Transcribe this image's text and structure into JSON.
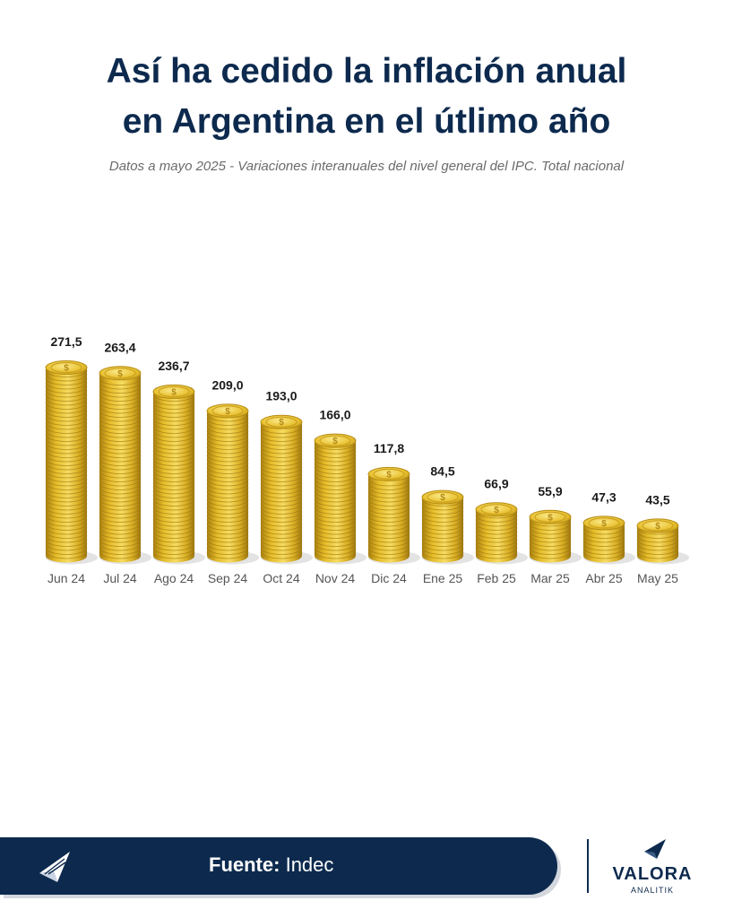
{
  "title_line1": "Así ha cedido la inflación anual",
  "title_line2": "en Argentina en el útlimo año",
  "subtitle": "Datos a mayo 2025 - Variaciones interanuales del nivel general del IPC. Total nacional",
  "footer": {
    "label": "Fuente:",
    "value": "Indec"
  },
  "brand": {
    "name": "VALORA",
    "sub": "ANALITIK",
    "icon": "valora-logo-icon"
  },
  "colors": {
    "navy": "#0d2a4e",
    "gold": "#e8c02a",
    "gold_dark": "#b8901a",
    "gold_light": "#f7df6e"
  },
  "chart_data": {
    "type": "bar",
    "categories": [
      "Jun 24",
      "Jul 24",
      "Ago 24",
      "Sep 24",
      "Oct 24",
      "Nov 24",
      "Dic 24",
      "Ene 25",
      "Feb 25",
      "Mar 25",
      "Abr 25",
      "May 25"
    ],
    "values": [
      271.5,
      263.4,
      236.7,
      209.0,
      193.0,
      166.0,
      117.8,
      84.5,
      66.9,
      55.9,
      47.3,
      43.5
    ],
    "data_labels": [
      "271,5",
      "263,4",
      "236,7",
      "209,0",
      "193,0",
      "166,0",
      "117,8",
      "84,5",
      "66,9",
      "55,9",
      "47,3",
      "43,5"
    ],
    "mark": "stacked gold coins"
  }
}
